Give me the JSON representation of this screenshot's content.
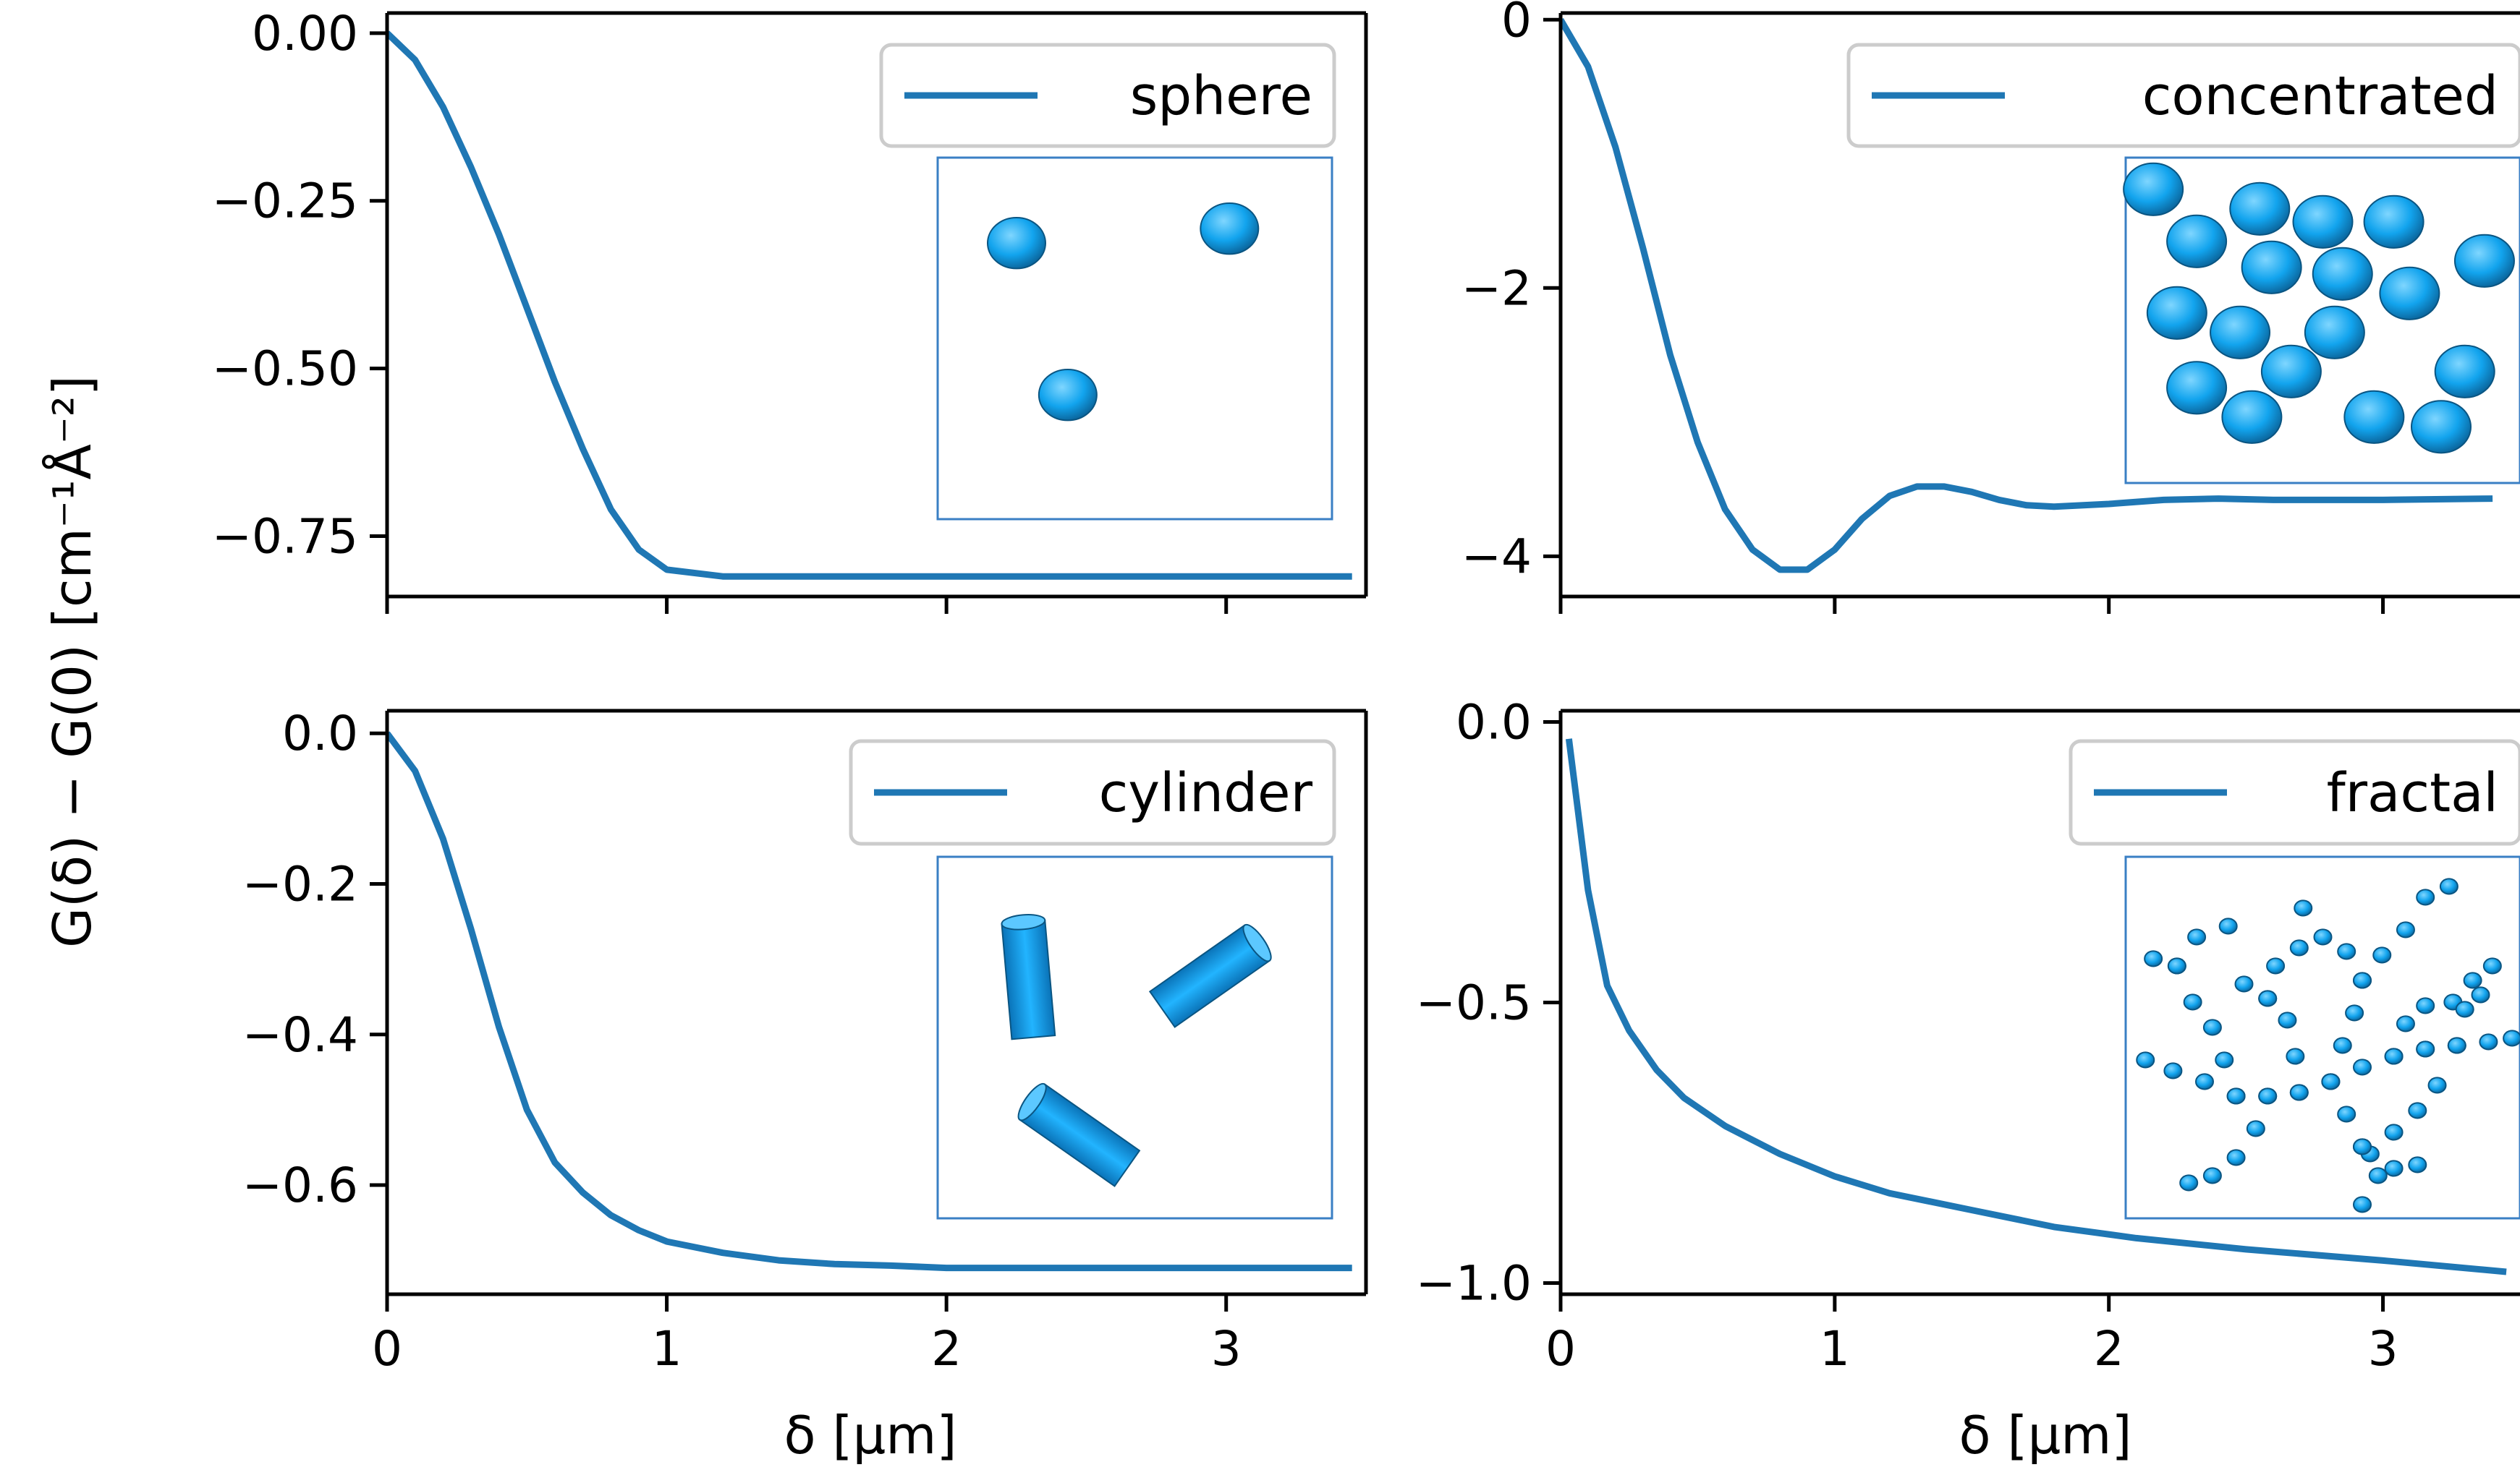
{
  "figure": {
    "ylabel": "G(δ) − G(0) [cm⁻¹Å⁻²]",
    "xlabel": "δ [μm]"
  },
  "colors": {
    "line": "#1f77b4",
    "particle": "#12a4ee",
    "inset_border": "#3a7fc4",
    "legend_border": "#cccccc"
  },
  "chart_data": [
    {
      "type": "line",
      "legend": "sphere",
      "inset": "isolated-spheres",
      "xlim": [
        0,
        3.5
      ],
      "ylim": [
        -0.84,
        0.03
      ],
      "x_ticks": [
        {
          "v": 0,
          "label": ""
        },
        {
          "v": 1,
          "label": ""
        },
        {
          "v": 2,
          "label": ""
        },
        {
          "v": 3,
          "label": ""
        }
      ],
      "y_ticks": [
        {
          "v": 0,
          "label": "0.00"
        },
        {
          "v": -0.25,
          "label": "−0.25"
        },
        {
          "v": -0.5,
          "label": "−0.50"
        },
        {
          "v": -0.75,
          "label": "−0.75"
        }
      ],
      "x": [
        0,
        0.1,
        0.2,
        0.3,
        0.4,
        0.5,
        0.6,
        0.7,
        0.8,
        0.9,
        1.0,
        1.2,
        1.5,
        2.0,
        2.5,
        3.0,
        3.45
      ],
      "y": [
        0,
        -0.04,
        -0.11,
        -0.2,
        -0.3,
        -0.41,
        -0.52,
        -0.62,
        -0.71,
        -0.77,
        -0.8,
        -0.81,
        -0.81,
        -0.81,
        -0.81,
        -0.81,
        -0.81
      ]
    },
    {
      "type": "line",
      "legend": "concentrated",
      "inset": "packed-spheres",
      "xlim": [
        0,
        3.5
      ],
      "ylim": [
        -4.3,
        0.05
      ],
      "x_ticks": [
        {
          "v": 0,
          "label": ""
        },
        {
          "v": 1,
          "label": ""
        },
        {
          "v": 2,
          "label": ""
        },
        {
          "v": 3,
          "label": ""
        }
      ],
      "y_ticks": [
        {
          "v": 0,
          "label": "0"
        },
        {
          "v": -2,
          "label": "−2"
        },
        {
          "v": -4,
          "label": "−4"
        }
      ],
      "x": [
        0,
        0.1,
        0.2,
        0.3,
        0.4,
        0.5,
        0.6,
        0.7,
        0.8,
        0.9,
        1.0,
        1.1,
        1.2,
        1.3,
        1.4,
        1.5,
        1.6,
        1.7,
        1.8,
        2.0,
        2.2,
        2.4,
        2.6,
        2.8,
        3.0,
        3.4
      ],
      "y": [
        0,
        -0.35,
        -0.95,
        -1.7,
        -2.5,
        -3.15,
        -3.65,
        -3.95,
        -4.1,
        -4.1,
        -3.95,
        -3.72,
        -3.55,
        -3.48,
        -3.48,
        -3.52,
        -3.58,
        -3.62,
        -3.63,
        -3.61,
        -3.58,
        -3.57,
        -3.58,
        -3.58,
        -3.58,
        -3.57
      ]
    },
    {
      "type": "line",
      "legend": "cylinder",
      "inset": "cylinders",
      "xlim": [
        0,
        3.5
      ],
      "ylim": [
        -0.745,
        0.03
      ],
      "x_ticks": [
        {
          "v": 0,
          "label": "0"
        },
        {
          "v": 1,
          "label": "1"
        },
        {
          "v": 2,
          "label": "2"
        },
        {
          "v": 3,
          "label": "3"
        }
      ],
      "y_ticks": [
        {
          "v": 0,
          "label": "0.0"
        },
        {
          "v": -0.2,
          "label": "−0.2"
        },
        {
          "v": -0.4,
          "label": "−0.4"
        },
        {
          "v": -0.6,
          "label": "−0.6"
        }
      ],
      "x": [
        0,
        0.1,
        0.2,
        0.3,
        0.4,
        0.5,
        0.6,
        0.7,
        0.8,
        0.9,
        1.0,
        1.2,
        1.4,
        1.6,
        1.8,
        2.0,
        2.5,
        3.0,
        3.45
      ],
      "y": [
        0,
        -0.05,
        -0.14,
        -0.26,
        -0.39,
        -0.5,
        -0.57,
        -0.61,
        -0.64,
        -0.66,
        -0.675,
        -0.69,
        -0.7,
        -0.705,
        -0.707,
        -0.71,
        -0.71,
        -0.71,
        -0.71
      ]
    },
    {
      "type": "line",
      "legend": "fractal",
      "inset": "fractal-aggregate",
      "xlim": [
        0,
        3.5
      ],
      "ylim": [
        -1.02,
        0.02
      ],
      "x_ticks": [
        {
          "v": 0,
          "label": "0"
        },
        {
          "v": 1,
          "label": "1"
        },
        {
          "v": 2,
          "label": "2"
        },
        {
          "v": 3,
          "label": "3"
        }
      ],
      "y_ticks": [
        {
          "v": 0,
          "label": "0.0"
        },
        {
          "v": -0.5,
          "label": "−0.5"
        },
        {
          "v": -1,
          "label": "−1.0"
        }
      ],
      "x": [
        0.03,
        0.1,
        0.17,
        0.25,
        0.35,
        0.45,
        0.6,
        0.8,
        1.0,
        1.2,
        1.5,
        1.8,
        2.1,
        2.5,
        3.0,
        3.45
      ],
      "y": [
        -0.03,
        -0.3,
        -0.47,
        -0.55,
        -0.62,
        -0.67,
        -0.72,
        -0.77,
        -0.81,
        -0.84,
        -0.87,
        -0.9,
        -0.92,
        -0.94,
        -0.96,
        -0.98
      ]
    }
  ]
}
